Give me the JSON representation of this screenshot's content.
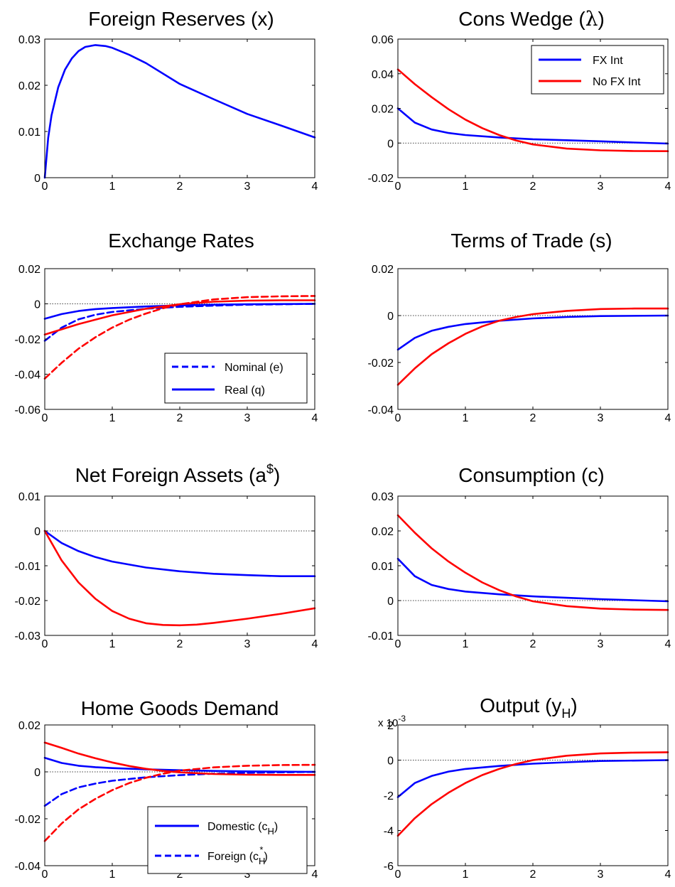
{
  "figure": {
    "legend_fx": {
      "fx": "FX Int",
      "nofx": "No FX Int"
    },
    "legend_exchange": {
      "nominal": "Nominal (e)",
      "real": "Real (q)"
    },
    "legend_home": {
      "domestic": "Domestic (c",
      "domestic_sub": "H",
      "domestic_close": ")",
      "foreign": "Foreign (c",
      "foreign_sub": "H",
      "foreign_sup": "*",
      "foreign_close": ")"
    },
    "output_scale": "x 10",
    "output_scale_exp": "-3"
  },
  "colors": {
    "fx": "#0000ff",
    "nofx": "#ff0000",
    "axis": "#000000"
  },
  "chart_data": [
    {
      "id": "reserves",
      "type": "line",
      "title": "Foreign Reserves (x)",
      "xlim": [
        0,
        4
      ],
      "ylim": [
        0,
        0.03
      ],
      "xticks": [
        0,
        1,
        2,
        3,
        4
      ],
      "xtick_labels": [
        "0",
        "1",
        "2",
        "3",
        "4"
      ],
      "yticks": [
        0,
        0.01,
        0.02,
        0.03
      ],
      "ytick_labels": [
        "0",
        "0.01",
        "0.02",
        "0.03"
      ],
      "zero_line": false,
      "series": [
        {
          "color": "#0000ff",
          "style": "solid",
          "x": [
            0,
            0.05,
            0.1,
            0.2,
            0.3,
            0.4,
            0.5,
            0.6,
            0.75,
            0.9,
            1.0,
            1.25,
            1.5,
            2.0,
            2.5,
            3.0,
            3.5,
            4.0
          ],
          "y": [
            0,
            0.0086,
            0.0135,
            0.0196,
            0.0234,
            0.0258,
            0.0274,
            0.0283,
            0.0287,
            0.0285,
            0.0281,
            0.0266,
            0.0248,
            0.0203,
            0.017,
            0.0138,
            0.0113,
            0.0087
          ]
        }
      ]
    },
    {
      "id": "cons-wedge",
      "type": "line",
      "title_main": "Cons Wedge (",
      "title_sym": "λ",
      "title_close": ")",
      "xlim": [
        0,
        4
      ],
      "ylim": [
        -0.02,
        0.06
      ],
      "xticks": [
        0,
        1,
        2,
        3,
        4
      ],
      "xtick_labels": [
        "0",
        "1",
        "2",
        "3",
        "4"
      ],
      "yticks": [
        -0.02,
        0,
        0.02,
        0.04,
        0.06
      ],
      "ytick_labels": [
        "-0.02",
        "0",
        "0.02",
        "0.04",
        "0.06"
      ],
      "zero_line": true,
      "series": [
        {
          "name": "FX Int",
          "color": "#0000ff",
          "style": "solid",
          "x": [
            0,
            0.25,
            0.5,
            0.75,
            1.0,
            1.5,
            2.0,
            2.5,
            3.0,
            3.5,
            4.0
          ],
          "y": [
            0.02,
            0.0118,
            0.0078,
            0.0058,
            0.0046,
            0.0032,
            0.0022,
            0.0016,
            0.001,
            0.0003,
            -0.0003
          ]
        },
        {
          "name": "No FX Int",
          "color": "#ff0000",
          "style": "solid",
          "x": [
            0,
            0.25,
            0.5,
            0.75,
            1.0,
            1.25,
            1.5,
            1.75,
            2.0,
            2.5,
            3.0,
            3.5,
            4.0
          ],
          "y": [
            0.0425,
            0.034,
            0.0265,
            0.0195,
            0.0135,
            0.0086,
            0.0046,
            0.0015,
            -0.0008,
            -0.0032,
            -0.0042,
            -0.0046,
            -0.0047
          ]
        }
      ]
    },
    {
      "id": "exchange-rates",
      "type": "line",
      "title": "Exchange Rates",
      "xlim": [
        0,
        4
      ],
      "ylim": [
        -0.06,
        0.02
      ],
      "xticks": [
        0,
        1,
        2,
        3,
        4
      ],
      "xtick_labels": [
        "0",
        "1",
        "2",
        "3",
        "4"
      ],
      "yticks": [
        -0.06,
        -0.04,
        -0.02,
        0,
        0.02
      ],
      "ytick_labels": [
        "-0.06",
        "-0.04",
        "-0.02",
        "0",
        "0.02"
      ],
      "zero_line": true,
      "series": [
        {
          "name": "Nominal (e)",
          "color": "#0000ff",
          "style": "dashed",
          "x": [
            0,
            0.25,
            0.5,
            0.75,
            1.0,
            1.5,
            2.0,
            2.5,
            3.0,
            4.0
          ],
          "y": [
            -0.021,
            -0.0135,
            -0.0088,
            -0.0062,
            -0.0046,
            -0.0028,
            -0.0017,
            -0.001,
            -0.0005,
            0
          ]
        },
        {
          "name": "Real (q)",
          "color": "#0000ff",
          "style": "solid",
          "x": [
            0,
            0.25,
            0.5,
            0.75,
            1.0,
            1.5,
            2.0,
            2.5,
            3.0,
            4.0
          ],
          "y": [
            -0.0085,
            -0.0058,
            -0.0041,
            -0.003,
            -0.0024,
            -0.0015,
            -0.0009,
            -0.0005,
            -0.0002,
            0
          ]
        },
        {
          "color": "#ff0000",
          "style": "dashed",
          "x": [
            0,
            0.25,
            0.5,
            0.75,
            1.0,
            1.25,
            1.5,
            1.75,
            2.0,
            2.5,
            3.0,
            3.5,
            4.0
          ],
          "y": [
            -0.0425,
            -0.0335,
            -0.0255,
            -0.019,
            -0.0135,
            -0.009,
            -0.0055,
            -0.0025,
            -0.0002,
            0.0025,
            0.0038,
            0.0043,
            0.0045
          ]
        },
        {
          "color": "#ff0000",
          "style": "solid",
          "x": [
            0,
            0.25,
            0.5,
            0.75,
            1.0,
            1.5,
            2.0,
            2.5,
            3.0,
            3.5,
            4.0
          ],
          "y": [
            -0.0175,
            -0.0145,
            -0.0115,
            -0.009,
            -0.0065,
            -0.0028,
            -0.0002,
            0.0012,
            0.0018,
            0.002,
            0.002
          ]
        }
      ]
    },
    {
      "id": "terms-of-trade",
      "type": "line",
      "title": "Terms of Trade (s)",
      "xlim": [
        0,
        4
      ],
      "ylim": [
        -0.04,
        0.02
      ],
      "xticks": [
        0,
        1,
        2,
        3,
        4
      ],
      "xtick_labels": [
        "0",
        "1",
        "2",
        "3",
        "4"
      ],
      "yticks": [
        -0.04,
        -0.02,
        0,
        0.02
      ],
      "ytick_labels": [
        "-0.04",
        "-0.02",
        "0",
        "0.02"
      ],
      "zero_line": true,
      "series": [
        {
          "color": "#0000ff",
          "style": "solid",
          "x": [
            0,
            0.25,
            0.5,
            0.75,
            1.0,
            1.5,
            2.0,
            2.5,
            3.0,
            4.0
          ],
          "y": [
            -0.0145,
            -0.0095,
            -0.0065,
            -0.0048,
            -0.0036,
            -0.0022,
            -0.0012,
            -0.0006,
            -0.0002,
            0
          ]
        },
        {
          "color": "#ff0000",
          "style": "solid",
          "x": [
            0,
            0.25,
            0.5,
            0.75,
            1.0,
            1.25,
            1.5,
            1.75,
            2.0,
            2.5,
            3.0,
            3.5,
            4.0
          ],
          "y": [
            -0.0295,
            -0.0225,
            -0.0165,
            -0.0118,
            -0.0078,
            -0.0046,
            -0.0022,
            -0.0006,
            0.0006,
            0.002,
            0.0028,
            0.003,
            0.003
          ]
        }
      ]
    },
    {
      "id": "net-foreign-assets",
      "type": "line",
      "title_main": "Net Foreign Assets (a",
      "title_sup": "$",
      "title_close": ")",
      "xlim": [
        0,
        4
      ],
      "ylim": [
        -0.03,
        0.01
      ],
      "xticks": [
        0,
        1,
        2,
        3,
        4
      ],
      "xtick_labels": [
        "0",
        "1",
        "2",
        "3",
        "4"
      ],
      "yticks": [
        -0.03,
        -0.02,
        -0.01,
        0,
        0.01
      ],
      "ytick_labels": [
        "-0.03",
        "-0.02",
        "-0.01",
        "0",
        "0.01"
      ],
      "zero_line": true,
      "series": [
        {
          "color": "#0000ff",
          "style": "solid",
          "x": [
            0,
            0.25,
            0.5,
            0.75,
            1.0,
            1.5,
            2.0,
            2.5,
            3.0,
            3.5,
            4.0
          ],
          "y": [
            0,
            -0.0035,
            -0.0058,
            -0.0075,
            -0.0088,
            -0.0105,
            -0.0116,
            -0.0123,
            -0.0127,
            -0.013,
            -0.013
          ]
        },
        {
          "color": "#ff0000",
          "style": "solid",
          "x": [
            0,
            0.25,
            0.5,
            0.75,
            1.0,
            1.25,
            1.5,
            1.75,
            2.0,
            2.25,
            2.5,
            3.0,
            3.5,
            4.0
          ],
          "y": [
            0,
            -0.0085,
            -0.0148,
            -0.0195,
            -0.023,
            -0.0252,
            -0.0265,
            -0.027,
            -0.0271,
            -0.0269,
            -0.0264,
            -0.0252,
            -0.0238,
            -0.0222
          ]
        }
      ]
    },
    {
      "id": "consumption",
      "type": "line",
      "title": "Consumption (c)",
      "xlim": [
        0,
        4
      ],
      "ylim": [
        -0.01,
        0.03
      ],
      "xticks": [
        0,
        1,
        2,
        3,
        4
      ],
      "xtick_labels": [
        "0",
        "1",
        "2",
        "3",
        "4"
      ],
      "yticks": [
        -0.01,
        0,
        0.01,
        0.02,
        0.03
      ],
      "ytick_labels": [
        "-0.01",
        "0",
        "0.01",
        "0.02",
        "0.03"
      ],
      "zero_line": true,
      "series": [
        {
          "color": "#0000ff",
          "style": "solid",
          "x": [
            0,
            0.25,
            0.5,
            0.75,
            1.0,
            1.5,
            2.0,
            2.5,
            3.0,
            3.5,
            4.0
          ],
          "y": [
            0.012,
            0.007,
            0.0045,
            0.0033,
            0.0026,
            0.0018,
            0.0012,
            0.0008,
            0.0004,
            0.0001,
            -0.0002
          ]
        },
        {
          "color": "#ff0000",
          "style": "solid",
          "x": [
            0,
            0.25,
            0.5,
            0.75,
            1.0,
            1.25,
            1.5,
            1.75,
            2.0,
            2.5,
            3.0,
            3.5,
            4.0
          ],
          "y": [
            0.0245,
            0.0195,
            0.015,
            0.0112,
            0.008,
            0.0052,
            0.003,
            0.0012,
            -0.0002,
            -0.0016,
            -0.0023,
            -0.0026,
            -0.0027
          ]
        }
      ]
    },
    {
      "id": "home-goods-demand",
      "type": "line",
      "title": "Home Goods Demand",
      "xlim": [
        0,
        4
      ],
      "ylim": [
        -0.04,
        0.02
      ],
      "xticks": [
        0,
        1,
        2,
        3,
        4
      ],
      "xtick_labels": [
        "0",
        "1",
        "2",
        "3",
        "4"
      ],
      "yticks": [
        -0.04,
        -0.02,
        0,
        0.02
      ],
      "ytick_labels": [
        "-0.04",
        "-0.02",
        "0",
        "0.02"
      ],
      "zero_line": true,
      "series": [
        {
          "color": "#0000ff",
          "style": "solid",
          "x": [
            0,
            0.25,
            0.5,
            0.75,
            1.0,
            1.5,
            2.0,
            2.5,
            3.0,
            4.0
          ],
          "y": [
            0.006,
            0.0038,
            0.0026,
            0.002,
            0.0016,
            0.0011,
            0.0007,
            0.0004,
            0.0002,
            0
          ]
        },
        {
          "color": "#0000ff",
          "style": "dashed",
          "x": [
            0,
            0.25,
            0.5,
            0.75,
            1.0,
            1.5,
            2.0,
            2.5,
            3.0,
            4.0
          ],
          "y": [
            -0.0145,
            -0.0095,
            -0.0066,
            -0.005,
            -0.0038,
            -0.0023,
            -0.0014,
            -0.0008,
            -0.0004,
            0
          ]
        },
        {
          "color": "#ff0000",
          "style": "solid",
          "x": [
            0,
            0.25,
            0.5,
            0.75,
            1.0,
            1.25,
            1.5,
            1.75,
            2.0,
            2.5,
            3.0,
            3.5,
            4.0
          ],
          "y": [
            0.0125,
            0.0102,
            0.0078,
            0.0058,
            0.004,
            0.0025,
            0.0013,
            0.0004,
            -0.0002,
            -0.0009,
            -0.0012,
            -0.0013,
            -0.0013
          ]
        },
        {
          "color": "#ff0000",
          "style": "dashed",
          "x": [
            0,
            0.25,
            0.5,
            0.75,
            1.0,
            1.25,
            1.5,
            1.75,
            2.0,
            2.5,
            3.0,
            3.5,
            4.0
          ],
          "y": [
            -0.0295,
            -0.022,
            -0.016,
            -0.0115,
            -0.0078,
            -0.0048,
            -0.0025,
            -0.0008,
            0.0005,
            0.0019,
            0.0026,
            0.0029,
            0.003
          ]
        }
      ]
    },
    {
      "id": "output",
      "type": "line",
      "title_main": "Output (y",
      "title_sub": "H",
      "title_close": ")",
      "xlim": [
        0,
        4
      ],
      "ylim": [
        -6,
        2
      ],
      "xticks": [
        0,
        1,
        2,
        3,
        4
      ],
      "xtick_labels": [
        "0",
        "1",
        "2",
        "3",
        "4"
      ],
      "yticks": [
        -6,
        -4,
        -2,
        0,
        2
      ],
      "ytick_labels": [
        "-6",
        "-4",
        "-2",
        "0",
        "2"
      ],
      "zero_line": true,
      "series": [
        {
          "color": "#0000ff",
          "style": "solid",
          "x": [
            0,
            0.25,
            0.5,
            0.75,
            1.0,
            1.5,
            2.0,
            2.5,
            3.0,
            4.0
          ],
          "y": [
            -2.1,
            -1.3,
            -0.9,
            -0.65,
            -0.5,
            -0.33,
            -0.2,
            -0.12,
            -0.05,
            0
          ]
        },
        {
          "color": "#ff0000",
          "style": "solid",
          "x": [
            0,
            0.25,
            0.5,
            0.75,
            1.0,
            1.25,
            1.5,
            1.75,
            2.0,
            2.5,
            3.0,
            3.5,
            4.0
          ],
          "y": [
            -4.3,
            -3.3,
            -2.5,
            -1.85,
            -1.3,
            -0.85,
            -0.5,
            -0.22,
            0,
            0.25,
            0.38,
            0.43,
            0.45
          ]
        }
      ]
    }
  ]
}
